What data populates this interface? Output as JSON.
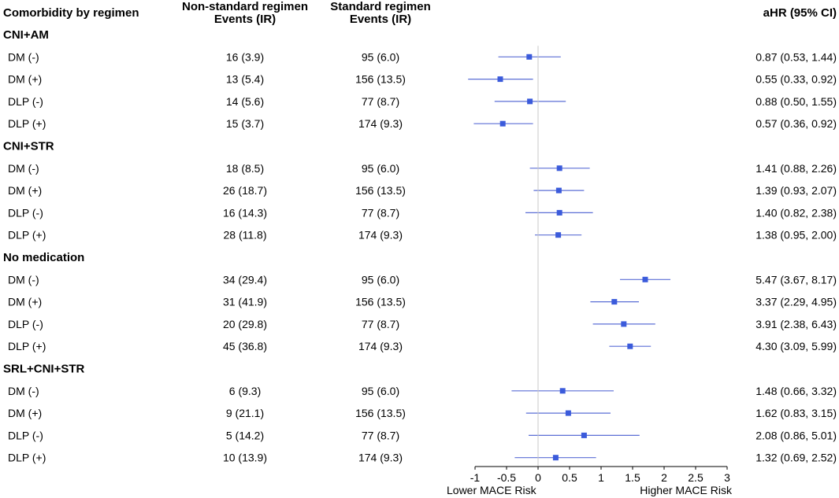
{
  "headers": {
    "col1": "Comorbidity by regimen",
    "col2_line1": "Non-standard regimen",
    "col2_line2": "Events (IR)",
    "col3_line1": "Standard regimen",
    "col3_line2": "Events (IR)",
    "col4": "aHR (95% CI)"
  },
  "chart_data": {
    "type": "forest",
    "title": "",
    "xlabel_left": "Lower MACE Risk",
    "xlabel_right": "Higher MACE Risk",
    "xlim": [
      -1,
      3
    ],
    "xticks": [
      -1,
      -0.5,
      0,
      0.5,
      1,
      1.5,
      2,
      2.5,
      3
    ],
    "xtick_labels": [
      "-1",
      "-0.5",
      "0",
      "0.5",
      "1",
      "1.5",
      "2",
      "2.5",
      "3"
    ],
    "reference_line": 0,
    "marker_color": "#3b5bdb",
    "ci_color": "#5b6fd6",
    "groups": [
      {
        "name": "CNI+AM",
        "rows": [
          {
            "label": "DM (-)",
            "nonstd": "16 (3.9)",
            "std": "95 (6.0)",
            "ahr_text": "0.87 (0.53, 1.44)",
            "est": -0.14,
            "lo": -0.63,
            "hi": 0.36
          },
          {
            "label": "DM (+)",
            "nonstd": "13 (5.4)",
            "std": "156 (13.5)",
            "ahr_text": "0.55 (0.33, 0.92)",
            "est": -0.6,
            "lo": -1.11,
            "hi": -0.08
          },
          {
            "label": "DLP (-)",
            "nonstd": "14 (5.6)",
            "std": "77 (8.7)",
            "ahr_text": "0.88 (0.50, 1.55)",
            "est": -0.13,
            "lo": -0.69,
            "hi": 0.44
          },
          {
            "label": "DLP (+)",
            "nonstd": "15 (3.7)",
            "std": "174 (9.3)",
            "ahr_text": "0.57 (0.36, 0.92)",
            "est": -0.56,
            "lo": -1.02,
            "hi": -0.08
          }
        ]
      },
      {
        "name": "CNI+STR",
        "rows": [
          {
            "label": "DM (-)",
            "nonstd": "18 (8.5)",
            "std": "95 (6.0)",
            "ahr_text": "1.41 (0.88, 2.26)",
            "est": 0.34,
            "lo": -0.13,
            "hi": 0.82
          },
          {
            "label": "DM (+)",
            "nonstd": "26 (18.7)",
            "std": "156 (13.5)",
            "ahr_text": "1.39 (0.93, 2.07)",
            "est": 0.33,
            "lo": -0.07,
            "hi": 0.73
          },
          {
            "label": "DLP (-)",
            "nonstd": "16 (14.3)",
            "std": "77 (8.7)",
            "ahr_text": "1.40 (0.82, 2.38)",
            "est": 0.34,
            "lo": -0.2,
            "hi": 0.87
          },
          {
            "label": "DLP (+)",
            "nonstd": "28 (11.8)",
            "std": "174 (9.3)",
            "ahr_text": "1.38 (0.95, 2.00)",
            "est": 0.32,
            "lo": -0.05,
            "hi": 0.69
          }
        ]
      },
      {
        "name": "No medication",
        "rows": [
          {
            "label": "DM (-)",
            "nonstd": "34 (29.4)",
            "std": "95 (6.0)",
            "ahr_text": "5.47 (3.67, 8.17)",
            "est": 1.7,
            "lo": 1.3,
            "hi": 2.1
          },
          {
            "label": "DM (+)",
            "nonstd": "31 (41.9)",
            "std": "156 (13.5)",
            "ahr_text": "3.37 (2.29, 4.95)",
            "est": 1.21,
            "lo": 0.83,
            "hi": 1.6
          },
          {
            "label": "DLP (-)",
            "nonstd": "20 (29.8)",
            "std": "77 (8.7)",
            "ahr_text": "3.91 (2.38, 6.43)",
            "est": 1.36,
            "lo": 0.87,
            "hi": 1.86
          },
          {
            "label": "DLP (+)",
            "nonstd": "45 (36.8)",
            "std": "174 (9.3)",
            "ahr_text": "4.30 (3.09, 5.99)",
            "est": 1.46,
            "lo": 1.13,
            "hi": 1.79
          }
        ]
      },
      {
        "name": "SRL+CNI+STR",
        "rows": [
          {
            "label": "DM (-)",
            "nonstd": "6 (9.3)",
            "std": "95 (6.0)",
            "ahr_text": "1.48 (0.66, 3.32)",
            "est": 0.39,
            "lo": -0.42,
            "hi": 1.2
          },
          {
            "label": "DM (+)",
            "nonstd": "9 (21.1)",
            "std": "156 (13.5)",
            "ahr_text": "1.62 (0.83, 3.15)",
            "est": 0.48,
            "lo": -0.19,
            "hi": 1.15
          },
          {
            "label": "DLP (-)",
            "nonstd": "5 (14.2)",
            "std": "77 (8.7)",
            "ahr_text": "2.08 (0.86, 5.01)",
            "est": 0.73,
            "lo": -0.15,
            "hi": 1.61
          },
          {
            "label": "DLP (+)",
            "nonstd": "10 (13.9)",
            "std": "174 (9.3)",
            "ahr_text": "1.32 (0.69, 2.52)",
            "est": 0.28,
            "lo": -0.37,
            "hi": 0.92
          }
        ]
      }
    ]
  }
}
